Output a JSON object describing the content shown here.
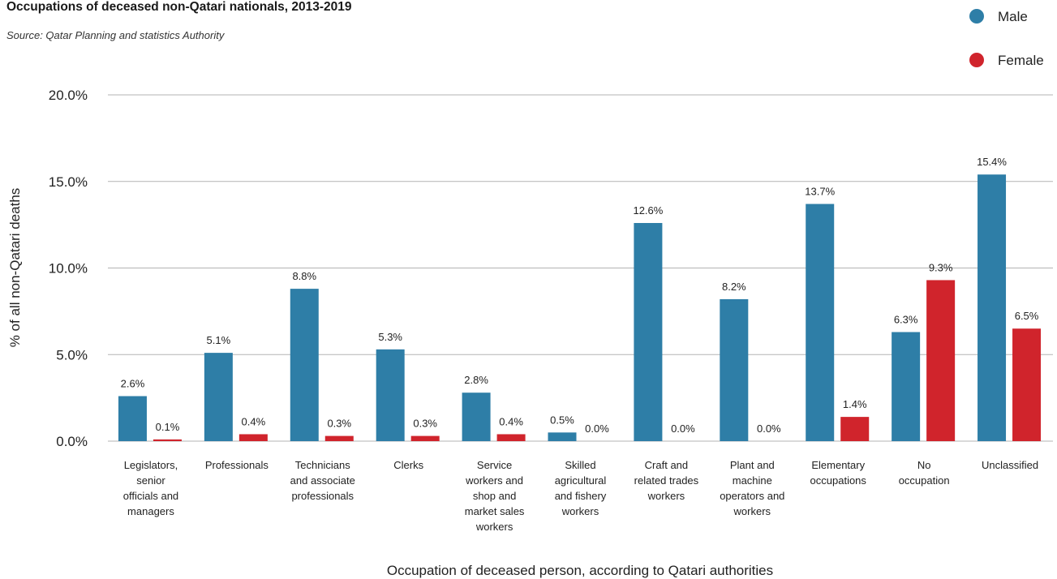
{
  "header": {
    "title": "Occupations of deceased non-Qatari nationals, 2013-2019",
    "subtitle": "Source: Qatar Planning and statistics Authority"
  },
  "colors": {
    "male": "#2e7ea7",
    "female": "#d0242c",
    "grid": "#b3b3b3"
  },
  "chart_data": {
    "type": "bar",
    "title": "Occupations of deceased non-Qatari nationals, 2013-2019",
    "subtitle": "Source: Qatar Planning and statistics Authority",
    "xlabel": "Occupation of deceased person, according to Qatari authorities",
    "ylabel": "% of all non-Qatari deaths",
    "ylim": [
      0,
      20
    ],
    "yticks": [
      0,
      5,
      10,
      15,
      20
    ],
    "ytick_labels": [
      "0.0%",
      "5.0%",
      "10.0%",
      "15.0%",
      "20.0%"
    ],
    "grid": true,
    "legend_position": "top-right",
    "categories": [
      [
        "Legislators,",
        "senior",
        "officials and",
        "managers"
      ],
      [
        "Professionals"
      ],
      [
        "Technicians",
        "and associate",
        "professionals"
      ],
      [
        "Clerks"
      ],
      [
        "Service",
        "workers and",
        "shop and",
        "market sales",
        "workers"
      ],
      [
        "Skilled",
        "agricultural",
        "and fishery",
        "workers"
      ],
      [
        "Craft and",
        "related trades",
        "workers"
      ],
      [
        "Plant and",
        "machine",
        "operators and",
        "workers"
      ],
      [
        "Elementary",
        "occupations"
      ],
      [
        "No",
        "occupation"
      ],
      [
        "Unclassified"
      ]
    ],
    "series": [
      {
        "name": "Male",
        "color": "#2e7ea7",
        "values": [
          2.6,
          5.1,
          8.8,
          5.3,
          2.8,
          0.5,
          12.6,
          8.2,
          13.7,
          6.3,
          15.4
        ],
        "labels": [
          "2.6%",
          "5.1%",
          "8.8%",
          "5.3%",
          "2.8%",
          "0.5%",
          "12.6%",
          "8.2%",
          "13.7%",
          "6.3%",
          "15.4%"
        ]
      },
      {
        "name": "Female",
        "color": "#d0242c",
        "values": [
          0.1,
          0.4,
          0.3,
          0.3,
          0.4,
          0.0,
          0.0,
          0.0,
          1.4,
          9.3,
          6.5
        ],
        "labels": [
          "0.1%",
          "0.4%",
          "0.3%",
          "0.3%",
          "0.4%",
          "0.0%",
          "0.0%",
          "0.0%",
          "1.4%",
          "9.3%",
          "6.5%"
        ]
      }
    ]
  }
}
